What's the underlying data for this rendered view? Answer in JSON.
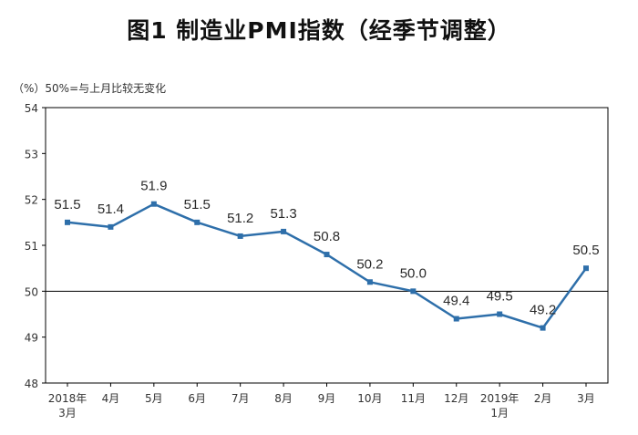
{
  "chart_data": {
    "type": "line",
    "title": "图1  制造业PMI指数（经季节调整）",
    "unit_note": "（%）50%=与上月比较无变化",
    "categories": [
      [
        "2018年",
        "3月"
      ],
      [
        "4月"
      ],
      [
        "5月"
      ],
      [
        "6月"
      ],
      [
        "7月"
      ],
      [
        "8月"
      ],
      [
        "9月"
      ],
      [
        "10月"
      ],
      [
        "11月"
      ],
      [
        "12月"
      ],
      [
        "2019年",
        "1月"
      ],
      [
        "2月"
      ],
      [
        "3月"
      ]
    ],
    "values": [
      51.5,
      51.4,
      51.9,
      51.5,
      51.2,
      51.3,
      50.8,
      50.2,
      50.0,
      49.4,
      49.5,
      49.2,
      50.5
    ],
    "value_labels": [
      "51.5",
      "51.4",
      "51.9",
      "51.5",
      "51.2",
      "51.3",
      "50.8",
      "50.2",
      "50.0",
      "49.4",
      "49.5",
      "49.2",
      "50.5"
    ],
    "ylim": [
      48,
      54
    ],
    "yticks": [
      48,
      49,
      50,
      51,
      52,
      53,
      54
    ],
    "reference_line": 50,
    "xlabel": "",
    "ylabel": "",
    "legend": "none",
    "grid": false,
    "colors": {
      "series": "#2e6faa",
      "axis": "#000000"
    }
  }
}
